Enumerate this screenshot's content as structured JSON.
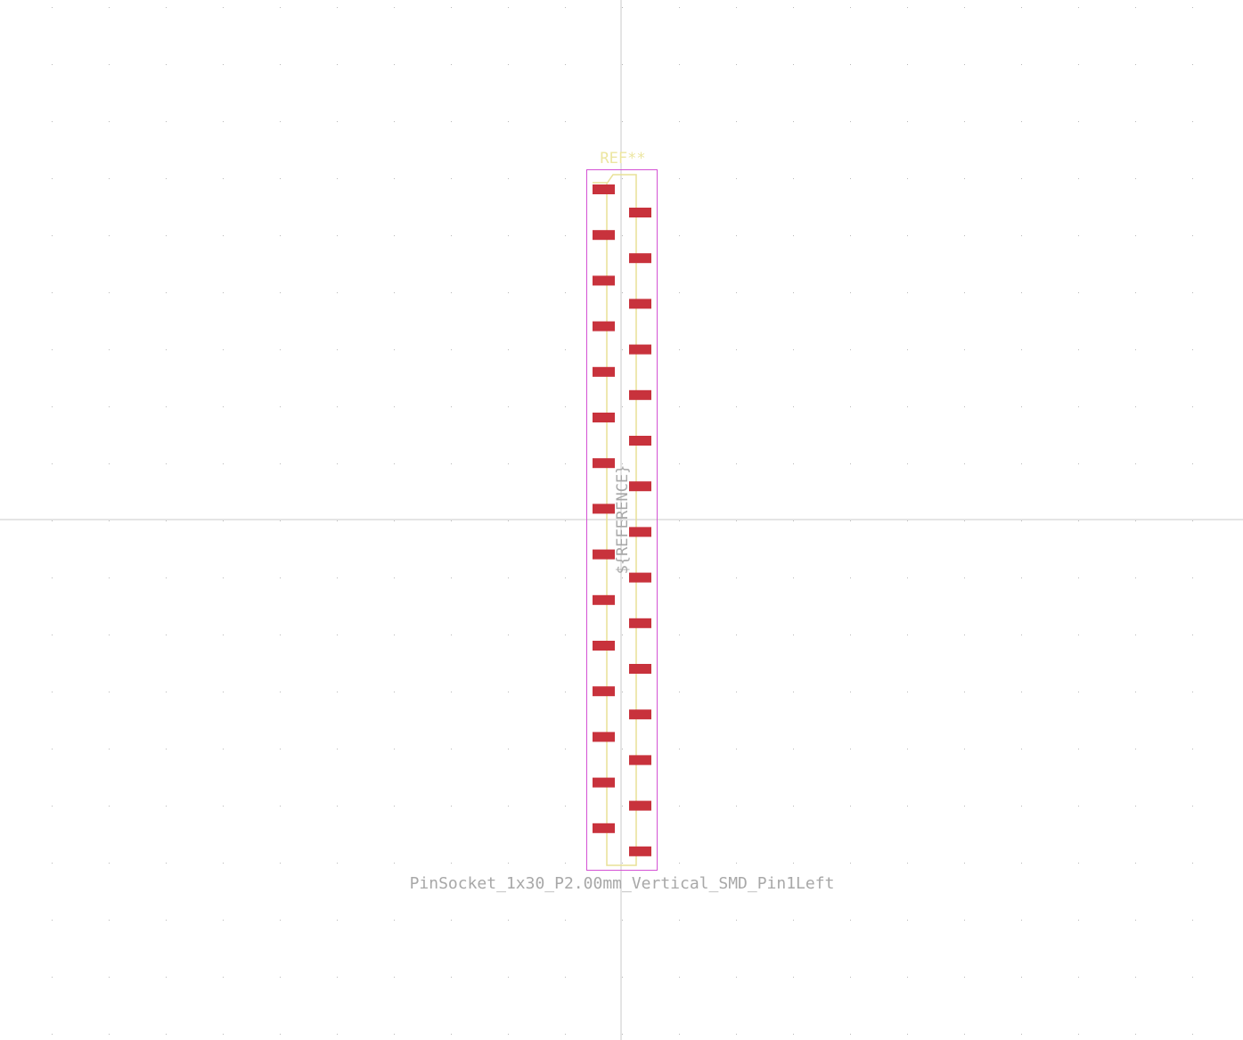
{
  "footprint": {
    "reference_text": "REF**",
    "fab_reference_text": "${REFERENCE}",
    "value_text": "PinSocket_1x30_P2.00mm_Vertical_SMD_Pin1Left",
    "pad_count": 30,
    "left_column_pads": 15,
    "right_column_pads": 15
  },
  "colors": {
    "background": "#ffffff",
    "grid_dot": "#b8b8b8",
    "axis": "#c8c8c8",
    "courtyard": "#d452d4",
    "silkscreen": "#e8e096",
    "pad": "#c8323c",
    "reference_text": "#ece6a0",
    "fab_text": "#a8a8a8",
    "value_text": "#a8a8a8"
  }
}
